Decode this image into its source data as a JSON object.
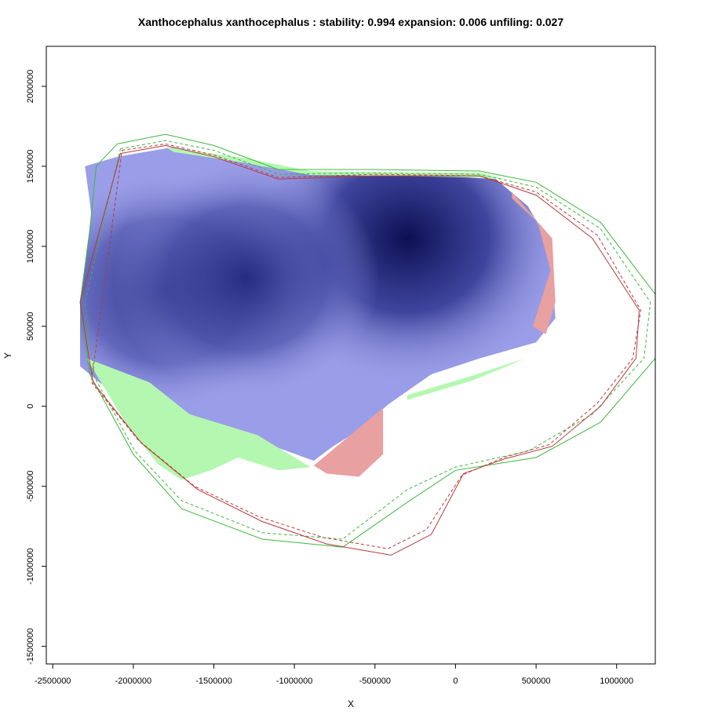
{
  "chart_data": {
    "type": "heatmap",
    "title": "Xanthocephalus xanthocephalus : stability: 0.994 expansion: 0.006 unfiling: 0.027",
    "xlabel": "X",
    "ylabel": "Y",
    "xlim": [
      -2540000,
      1240000
    ],
    "ylim": [
      -1610000,
      2250000
    ],
    "x_ticks": [
      -2500000,
      -2000000,
      -1500000,
      -1000000,
      -500000,
      0,
      500000,
      1000000
    ],
    "x_tick_labels": [
      "-2500000",
      "-2000000",
      "-1500000",
      "-1000000",
      "-500000",
      "0",
      "500000",
      "1000000"
    ],
    "y_ticks": [
      -1500000,
      -1000000,
      -500000,
      0,
      500000,
      1000000,
      1500000,
      2000000
    ],
    "y_tick_labels": [
      "-1500000",
      "-1000000",
      "-500000",
      "0",
      "500000",
      "1000000",
      "1500000",
      "2000000"
    ],
    "legend": "none",
    "colors": {
      "stability_gradient_light": "#9a9ee8",
      "stability_gradient_dark": "#0b0f52",
      "expansion": "#b4f7b0",
      "unfilling": "#e8a0a0",
      "native_contour": "#3cb83c",
      "invaded_contour": "#b83a3a"
    },
    "stability_centers": [
      {
        "x": -300000,
        "y": 1050000
      },
      {
        "x": -1800000,
        "y": 720000
      },
      {
        "x": -1300000,
        "y": 800000
      }
    ],
    "regions": {
      "stability": [
        [
          -2300000,
          1500000
        ],
        [
          -2260000,
          1200000
        ],
        [
          -2330000,
          650000
        ],
        [
          -2330000,
          250000
        ],
        [
          -2150000,
          100000
        ],
        [
          -1760000,
          -20000
        ],
        [
          -1450000,
          -130000
        ],
        [
          -1100000,
          -260000
        ],
        [
          -880000,
          -340000
        ],
        [
          -760000,
          -250000
        ],
        [
          -600000,
          -150000
        ],
        [
          -420000,
          10000
        ],
        [
          -150000,
          200000
        ],
        [
          150000,
          300000
        ],
        [
          500000,
          400000
        ],
        [
          620000,
          550000
        ],
        [
          590000,
          1000000
        ],
        [
          450000,
          1250000
        ],
        [
          250000,
          1420000
        ],
        [
          -250000,
          1450000
        ],
        [
          -800000,
          1450000
        ],
        [
          -1200000,
          1500000
        ],
        [
          -1450000,
          1560000
        ],
        [
          -1750000,
          1620000
        ],
        [
          -2100000,
          1560000
        ]
      ],
      "expansion": [
        [
          [
            -2290000,
            300000
          ],
          [
            -1900000,
            150000
          ],
          [
            -1650000,
            -50000
          ],
          [
            -1230000,
            -180000
          ],
          [
            -900000,
            -380000
          ],
          [
            -1100000,
            -400000
          ],
          [
            -1350000,
            -320000
          ],
          [
            -1520000,
            -400000
          ],
          [
            -1700000,
            -460000
          ],
          [
            -1850000,
            -360000
          ],
          [
            -2050000,
            -100000
          ]
        ],
        [
          [
            -1800000,
            1620000
          ],
          [
            -1300000,
            1550000
          ],
          [
            -900000,
            1470000
          ],
          [
            -400000,
            1460000
          ],
          [
            150000,
            1460000
          ],
          [
            300000,
            1420000
          ],
          [
            150000,
            1430000
          ],
          [
            -400000,
            1440000
          ],
          [
            -900000,
            1445000
          ],
          [
            -1300000,
            1520000
          ],
          [
            -1750000,
            1590000
          ]
        ],
        [
          [
            -300000,
            70000
          ],
          [
            100000,
            190000
          ],
          [
            430000,
            300000
          ],
          [
            320000,
            250000
          ],
          [
            100000,
            160000
          ],
          [
            -300000,
            40000
          ]
        ]
      ],
      "unfilling": [
        [
          [
            -880000,
            -370000
          ],
          [
            -450000,
            -10000
          ],
          [
            -450000,
            -300000
          ],
          [
            -600000,
            -440000
          ],
          [
            -800000,
            -420000
          ]
        ],
        [
          [
            350000,
            1340000
          ],
          [
            600000,
            1050000
          ],
          [
            620000,
            650000
          ],
          [
            560000,
            450000
          ],
          [
            480000,
            500000
          ],
          [
            590000,
            850000
          ],
          [
            510000,
            1150000
          ],
          [
            350000,
            1300000
          ]
        ]
      ]
    },
    "contours": [
      {
        "color": "native",
        "style": "solid",
        "points": [
          [
            -2100000,
            1640000
          ],
          [
            -1800000,
            1700000
          ],
          [
            -1500000,
            1630000
          ],
          [
            -1100000,
            1480000
          ],
          [
            -500000,
            1480000
          ],
          [
            150000,
            1470000
          ],
          [
            500000,
            1400000
          ],
          [
            900000,
            1150000
          ],
          [
            1240000,
            700000
          ],
          [
            1240000,
            300000
          ],
          [
            900000,
            -100000
          ],
          [
            500000,
            -320000
          ],
          [
            0,
            -400000
          ],
          [
            -300000,
            -600000
          ],
          [
            -700000,
            -880000
          ],
          [
            -1200000,
            -830000
          ],
          [
            -1700000,
            -640000
          ],
          [
            -2000000,
            -300000
          ],
          [
            -2270000,
            200000
          ],
          [
            -2330000,
            650000
          ],
          [
            -2270000,
            1100000
          ],
          [
            -2230000,
            1500000
          ]
        ]
      },
      {
        "color": "native",
        "style": "dashed",
        "points": [
          [
            -2080000,
            1610000
          ],
          [
            -1800000,
            1660000
          ],
          [
            -1500000,
            1600000
          ],
          [
            -1100000,
            1450000
          ],
          [
            -500000,
            1460000
          ],
          [
            150000,
            1450000
          ],
          [
            500000,
            1370000
          ],
          [
            900000,
            1110000
          ],
          [
            1210000,
            650000
          ],
          [
            1170000,
            300000
          ],
          [
            850000,
            -50000
          ],
          [
            450000,
            -280000
          ],
          [
            0,
            -380000
          ],
          [
            -300000,
            -520000
          ],
          [
            -700000,
            -830000
          ],
          [
            -1200000,
            -790000
          ],
          [
            -1700000,
            -590000
          ],
          [
            -1990000,
            -280000
          ],
          [
            -2240000,
            180000
          ],
          [
            -2300000,
            650000
          ]
        ]
      },
      {
        "color": "invaded",
        "style": "solid",
        "points": [
          [
            -2080000,
            1580000
          ],
          [
            -1800000,
            1630000
          ],
          [
            -1500000,
            1560000
          ],
          [
            -1100000,
            1420000
          ],
          [
            -500000,
            1440000
          ],
          [
            150000,
            1440000
          ],
          [
            500000,
            1320000
          ],
          [
            850000,
            1050000
          ],
          [
            1140000,
            600000
          ],
          [
            1120000,
            300000
          ],
          [
            900000,
            0
          ],
          [
            600000,
            -250000
          ],
          [
            300000,
            -330000
          ],
          [
            50000,
            -420000
          ],
          [
            -150000,
            -800000
          ],
          [
            -400000,
            -930000
          ],
          [
            -800000,
            -860000
          ],
          [
            -1200000,
            -720000
          ],
          [
            -1600000,
            -520000
          ],
          [
            -1950000,
            -230000
          ],
          [
            -2250000,
            150000
          ],
          [
            -2330000,
            650000
          ]
        ]
      },
      {
        "color": "invaded",
        "style": "dashed",
        "points": [
          [
            -2070000,
            1600000
          ],
          [
            -1800000,
            1640000
          ],
          [
            -1500000,
            1570000
          ],
          [
            -1100000,
            1430000
          ],
          [
            -500000,
            1450000
          ],
          [
            150000,
            1440000
          ],
          [
            500000,
            1340000
          ],
          [
            880000,
            1070000
          ],
          [
            1150000,
            600000
          ],
          [
            1100000,
            300000
          ],
          [
            880000,
            20000
          ],
          [
            580000,
            -240000
          ],
          [
            300000,
            -320000
          ],
          [
            40000,
            -430000
          ],
          [
            -180000,
            -770000
          ],
          [
            -420000,
            -890000
          ],
          [
            -820000,
            -820000
          ],
          [
            -1220000,
            -690000
          ],
          [
            -1620000,
            -500000
          ],
          [
            -1970000,
            -210000
          ],
          [
            -2260000,
            150000
          ]
        ]
      }
    ]
  }
}
